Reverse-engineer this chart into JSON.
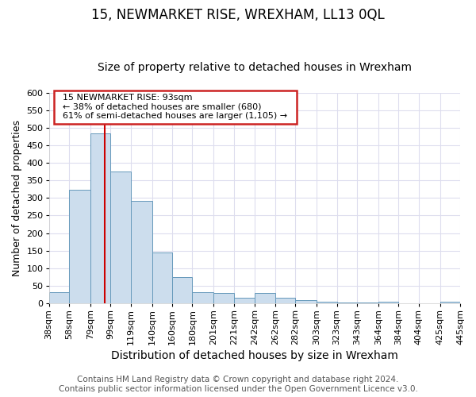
{
  "title": "15, NEWMARKET RISE, WREXHAM, LL13 0QL",
  "subtitle": "Size of property relative to detached houses in Wrexham",
  "xlabel": "Distribution of detached houses by size in Wrexham",
  "ylabel": "Number of detached properties",
  "bin_edges": [
    38,
    58,
    79,
    99,
    119,
    140,
    160,
    180,
    201,
    221,
    242,
    262,
    282,
    303,
    323,
    343,
    364,
    384,
    404,
    425,
    445
  ],
  "bar_heights": [
    32,
    323,
    483,
    375,
    291,
    144,
    75,
    32,
    29,
    16,
    29,
    15,
    8,
    5,
    3,
    3,
    5,
    1,
    1,
    5
  ],
  "bar_color": "#ccdded",
  "bar_edgecolor": "#6699bb",
  "property_line_x": 93,
  "property_line_color": "#cc0000",
  "ylim": [
    0,
    600
  ],
  "yticks": [
    0,
    50,
    100,
    150,
    200,
    250,
    300,
    350,
    400,
    450,
    500,
    550,
    600
  ],
  "annotation_title": "15 NEWMARKET RISE: 93sqm",
  "annotation_line1": "← 38% of detached houses are smaller (680)",
  "annotation_line2": "61% of semi-detached houses are larger (1,105) →",
  "footer_line1": "Contains HM Land Registry data © Crown copyright and database right 2024.",
  "footer_line2": "Contains public sector information licensed under the Open Government Licence v3.0.",
  "plot_bg_color": "#ffffff",
  "fig_bg_color": "#ffffff",
  "grid_color": "#ddddee",
  "title_fontsize": 12,
  "subtitle_fontsize": 10,
  "xlabel_fontsize": 10,
  "ylabel_fontsize": 9,
  "tick_fontsize": 8,
  "footer_fontsize": 7.5
}
